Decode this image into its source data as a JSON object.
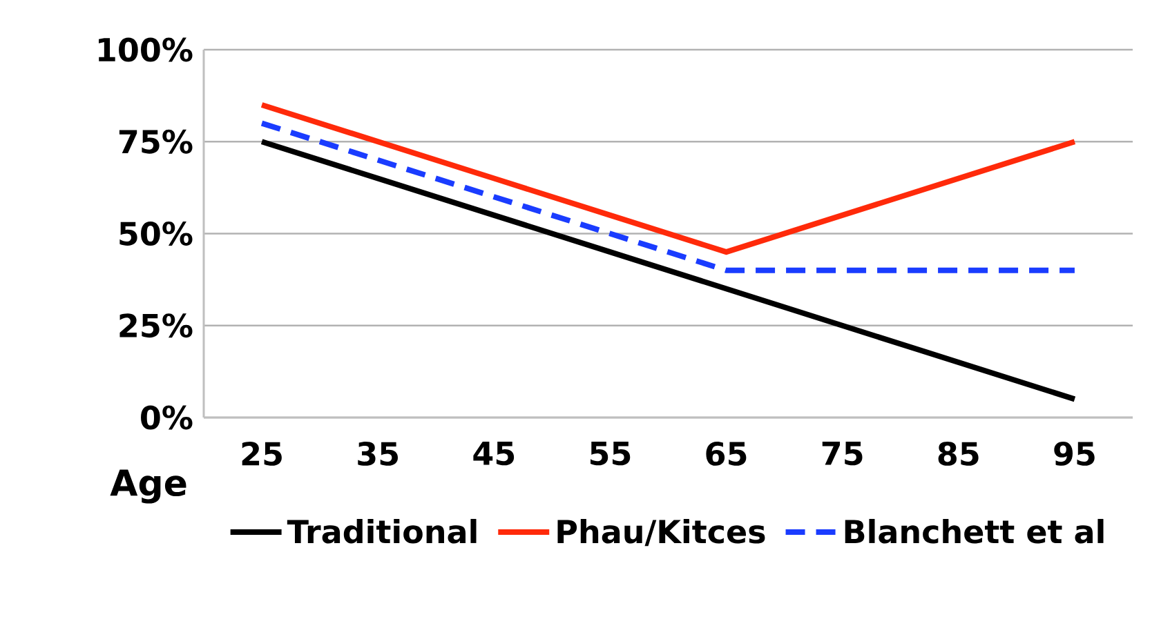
{
  "chart_data": {
    "type": "line",
    "xlabel": "Age",
    "categories": [
      "25",
      "35",
      "45",
      "55",
      "65",
      "75",
      "85",
      "95"
    ],
    "series": [
      {
        "name": "Traditional",
        "color": "#000000",
        "line_style": "solid",
        "values": [
          75,
          65,
          55,
          45,
          35,
          25,
          15,
          5
        ]
      },
      {
        "name": "Phau/Kitces",
        "color": "#ff2a0a",
        "line_style": "solid",
        "values": [
          85,
          75,
          65,
          55,
          45,
          55,
          65,
          75
        ]
      },
      {
        "name": "Blanchett et al",
        "color": "#1a3cff",
        "line_style": "dashed",
        "values": [
          80,
          70,
          60,
          50,
          40,
          40,
          40,
          40
        ]
      }
    ],
    "ylim": [
      0,
      100
    ],
    "yticks": [
      {
        "value": 0,
        "label": "0%"
      },
      {
        "value": 25,
        "label": "25%"
      },
      {
        "value": 50,
        "label": "50%"
      },
      {
        "value": 75,
        "label": "75%"
      },
      {
        "value": 100,
        "label": "100%"
      }
    ],
    "grid": "y",
    "legend": "bottom",
    "marker": "none"
  }
}
